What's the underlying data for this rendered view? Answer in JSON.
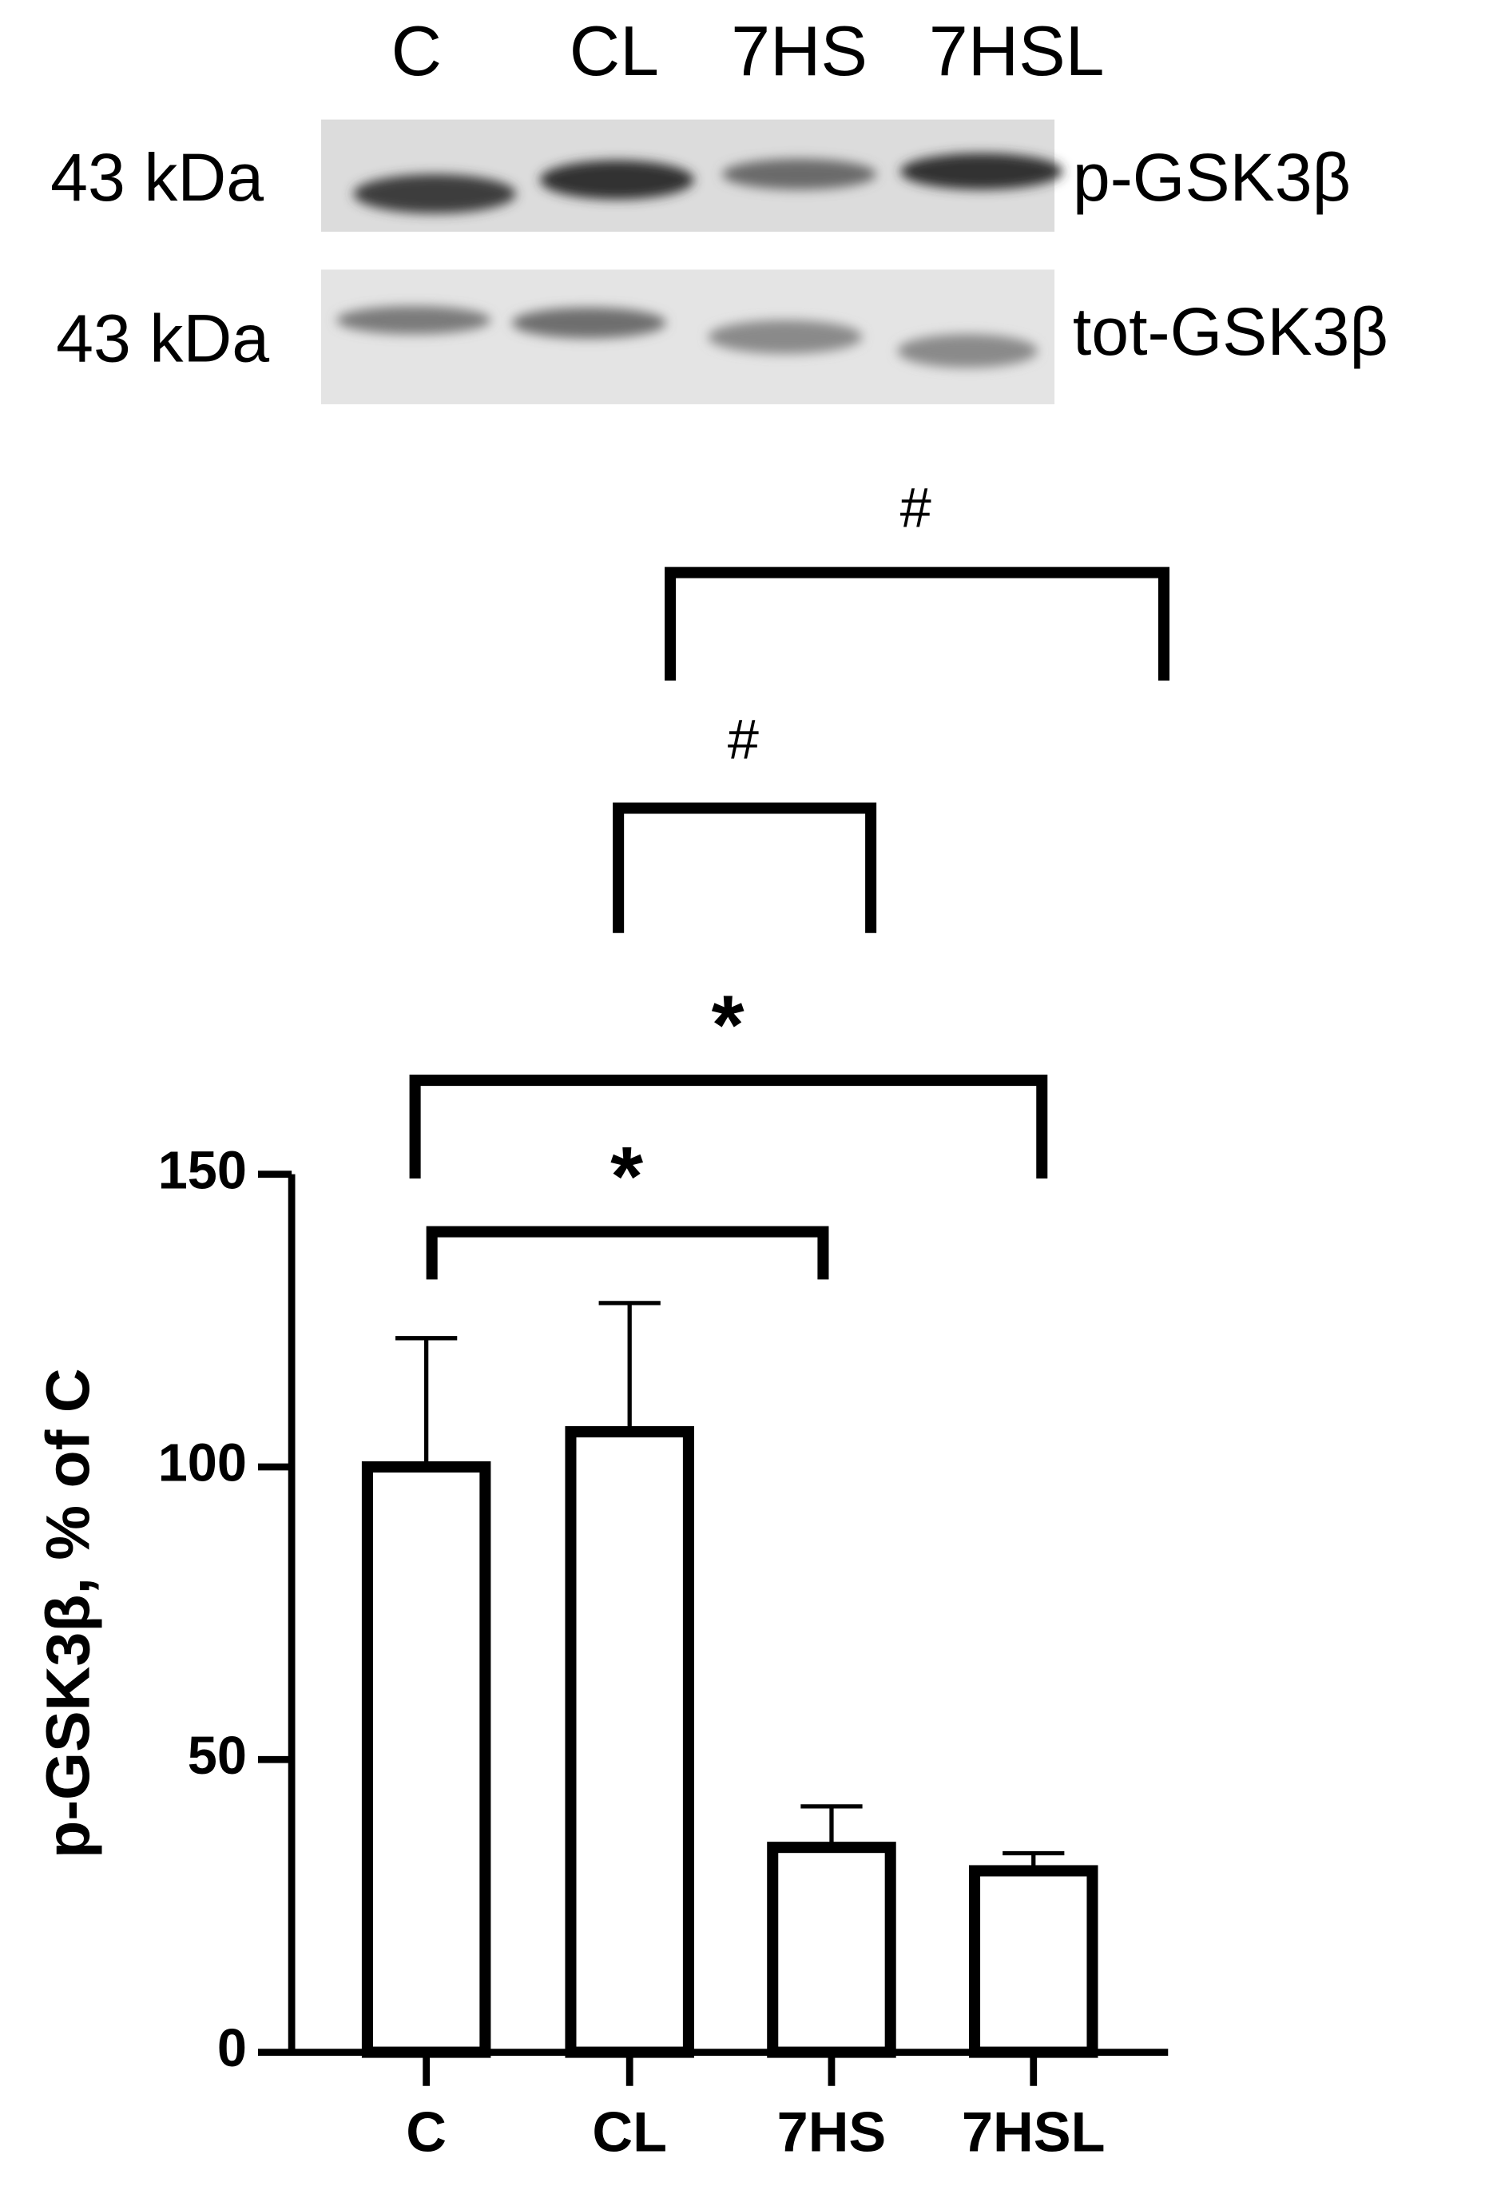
{
  "blot": {
    "lanes": [
      "C",
      "CL",
      "7HS",
      "7HSL"
    ],
    "rows": [
      {
        "mw": "43 kDa",
        "label": "p-GSK3β"
      },
      {
        "mw": "43 kDa",
        "label": "tot-GSK3β"
      }
    ]
  },
  "chart_data": {
    "type": "bar",
    "y_label": "p-GSK3β, % of C",
    "categories": [
      "C",
      "CL",
      "7HS",
      "7HSL"
    ],
    "values": [
      100,
      106,
      35,
      31
    ],
    "errors": [
      22,
      22,
      7,
      3
    ],
    "color": "#ffffff",
    "edge_color": "#000000",
    "ylim": [
      0,
      150
    ],
    "yticks": [
      0,
      50,
      100,
      150
    ],
    "annotations": [
      {
        "text": "*"
      },
      {
        "text": "*"
      },
      {
        "text": "#"
      },
      {
        "text": "#"
      }
    ]
  }
}
